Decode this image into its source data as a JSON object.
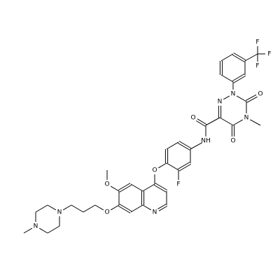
{
  "atom_labels": [
    "F",
    "F",
    "F",
    "N",
    "N",
    "N",
    "O",
    "O",
    "O",
    "NH",
    "F",
    "O",
    "N",
    "O",
    "O",
    "N",
    "N"
  ]
}
